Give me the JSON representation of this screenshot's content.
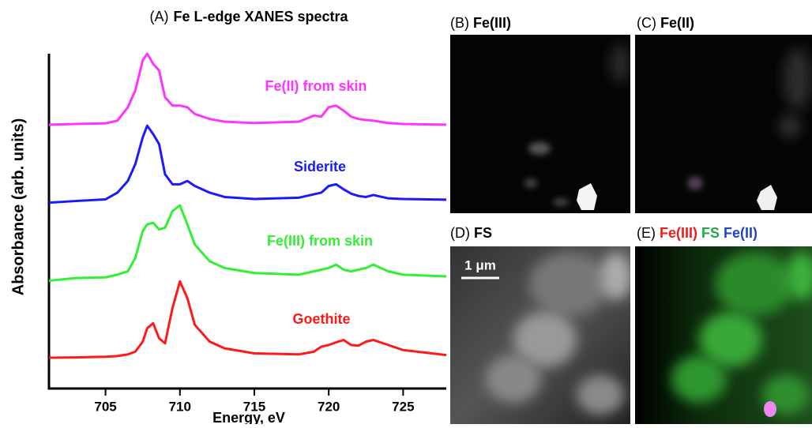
{
  "chart_data": {
    "type": "line",
    "panel_label": "(A)",
    "title": "Fe L-edge  XANES spectra",
    "x_label": "Energy, eV",
    "y_label": "Absorbance (arb. units)",
    "x": [
      701.2,
      703,
      705,
      705.8,
      706.5,
      707,
      707.5,
      707.8,
      708.2,
      708.6,
      709,
      709.5,
      710,
      710.5,
      711,
      712,
      713,
      715,
      718,
      719,
      719.5,
      720,
      720.5,
      721,
      721.5,
      722,
      722.5,
      723,
      724,
      725,
      727.9
    ],
    "xlim": [
      701.2,
      727.9
    ],
    "xticks": [
      705,
      710,
      715,
      720,
      725
    ],
    "ylim": [
      0,
      10
    ],
    "series": [
      {
        "name": "Fe(II) from skin",
        "color": "#ff33ff",
        "values": [
          7.88,
          7.9,
          7.92,
          8.0,
          8.4,
          8.9,
          9.8,
          10.0,
          9.7,
          9.5,
          8.7,
          8.45,
          8.45,
          8.4,
          8.2,
          8.05,
          7.97,
          7.93,
          7.97,
          8.15,
          8.12,
          8.4,
          8.45,
          8.3,
          8.12,
          8.05,
          8.02,
          8.0,
          7.93,
          7.9,
          7.88
        ]
      },
      {
        "name": "Siderite",
        "color": "#1a1aff",
        "values": [
          5.55,
          5.6,
          5.65,
          5.85,
          6.2,
          6.7,
          7.5,
          7.85,
          7.6,
          7.3,
          6.4,
          6.1,
          6.1,
          6.2,
          6.05,
          5.85,
          5.72,
          5.66,
          5.7,
          5.8,
          5.85,
          6.05,
          6.1,
          5.95,
          5.82,
          5.75,
          5.72,
          5.78,
          5.68,
          5.66,
          5.64
        ]
      },
      {
        "name": "Fe(III) from skin",
        "color": "#33ee33",
        "values": [
          3.22,
          3.3,
          3.32,
          3.4,
          3.5,
          3.9,
          4.7,
          4.9,
          4.95,
          4.75,
          4.8,
          5.3,
          5.47,
          4.9,
          4.3,
          3.8,
          3.6,
          3.45,
          3.4,
          3.5,
          3.55,
          3.6,
          3.7,
          3.55,
          3.5,
          3.55,
          3.6,
          3.7,
          3.5,
          3.4,
          3.35
        ]
      },
      {
        "name": "Goethite",
        "color": "#ff1a1a",
        "values": [
          0.92,
          0.93,
          0.95,
          0.97,
          1.02,
          1.1,
          1.4,
          1.8,
          1.95,
          1.5,
          1.35,
          2.4,
          3.2,
          2.7,
          1.9,
          1.4,
          1.2,
          1.05,
          1.02,
          1.1,
          1.25,
          1.3,
          1.38,
          1.45,
          1.3,
          1.28,
          1.4,
          1.45,
          1.3,
          1.15,
          1.0
        ]
      }
    ]
  },
  "panels": [
    {
      "label": "(B)",
      "title_parts": [
        {
          "text": "Fe(III)",
          "color": "#000000"
        }
      ]
    },
    {
      "label": "(C)",
      "title_parts": [
        {
          "text": "Fe(II)",
          "color": "#000000"
        }
      ]
    },
    {
      "label": "(D)",
      "title_parts": [
        {
          "text": "FS",
          "color": "#000000"
        }
      ],
      "scale_bar": "1 μm"
    },
    {
      "label": "(E)",
      "title_parts": [
        {
          "text": "Fe(III)",
          "color": "#ee1c1c"
        },
        {
          "text": "FS",
          "color": "#22aa44"
        },
        {
          "text": "Fe(II)",
          "color": "#2244cc"
        }
      ]
    }
  ]
}
